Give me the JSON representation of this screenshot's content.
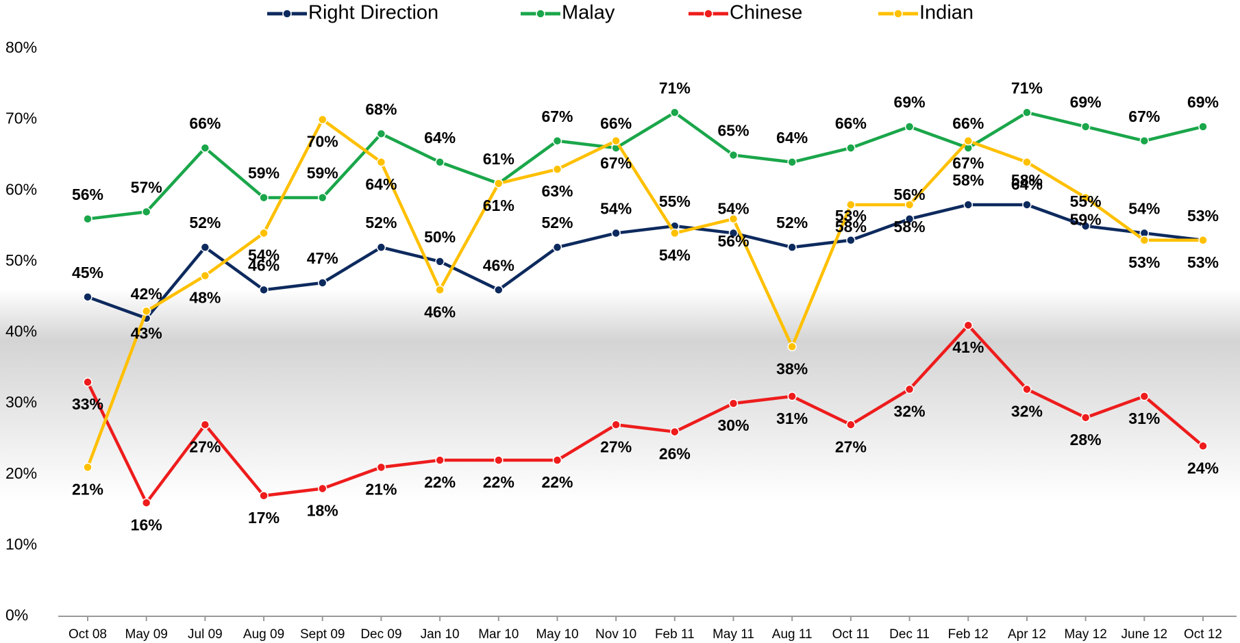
{
  "chart_data": {
    "type": "line",
    "categories": [
      "Oct 08",
      "May 09",
      "Jul 09",
      "Aug 09",
      "Sept 09",
      "Dec 09",
      "Jan 10",
      "Mar 10",
      "May 10",
      "Nov 10",
      "Feb 11",
      "May 11",
      "Aug 11",
      "Oct 11",
      "Dec 11",
      "Feb 12",
      "Apr 12",
      "May 12",
      "June 12",
      "Oct 12"
    ],
    "series": [
      {
        "name": "Right Direction",
        "color": "#0d2a5e",
        "values": [
          45,
          42,
          52,
          46,
          47,
          52,
          50,
          46,
          52,
          54,
          55,
          54,
          52,
          53,
          56,
          58,
          58,
          55,
          54,
          53
        ],
        "value_labels": [
          "45%",
          "42%",
          "52%",
          "46%",
          "47%",
          "52%",
          "50%",
          "46%",
          "52%",
          "54%",
          "55%",
          "54%",
          "52%",
          "53%",
          "56%",
          "58%",
          "58%",
          "55%",
          "54%",
          "53%"
        ]
      },
      {
        "name": "Malay",
        "color": "#1aa64a",
        "values": [
          56,
          57,
          66,
          59,
          59,
          68,
          64,
          61,
          67,
          66,
          71,
          65,
          64,
          66,
          69,
          66,
          71,
          69,
          67,
          69
        ],
        "value_labels": [
          "56%",
          "57%",
          "66%",
          "59%",
          "59%",
          "68%",
          "64%",
          "61%",
          "67%",
          "66%",
          "71%",
          "65%",
          "64%",
          "66%",
          "69%",
          "66%",
          "71%",
          "69%",
          "67%",
          "69%"
        ]
      },
      {
        "name": "Chinese",
        "color": "#ee1c1c",
        "values": [
          33,
          16,
          27,
          17,
          18,
          21,
          22,
          22,
          22,
          27,
          26,
          30,
          31,
          27,
          32,
          41,
          32,
          28,
          31,
          24
        ],
        "value_labels": [
          "33%",
          "16%",
          "27%",
          "17%",
          "18%",
          "21%",
          "22%",
          "22%",
          "22%",
          "27%",
          "26%",
          "30%",
          "31%",
          "27%",
          "32%",
          "41%",
          "32%",
          "28%",
          "31%",
          "24%"
        ]
      },
      {
        "name": "Indian",
        "color": "#ffc000",
        "values": [
          21,
          43,
          48,
          54,
          70,
          64,
          46,
          61,
          63,
          67,
          54,
          56,
          38,
          58,
          58,
          67,
          64,
          59,
          53,
          53
        ],
        "value_labels": [
          "21%",
          "43%",
          "48%",
          "54%",
          "70%",
          "64%",
          "46%",
          "61%",
          "63%",
          "67%",
          "54%",
          "56%",
          "38%",
          "58%",
          "58%",
          "67%",
          "64%",
          "59%",
          "53%",
          "53%"
        ]
      }
    ],
    "ylim": [
      0,
      80
    ],
    "yticks": [
      {
        "value": 0,
        "label": "0%"
      },
      {
        "value": 10,
        "label": "10%"
      },
      {
        "value": 20,
        "label": "20%"
      },
      {
        "value": 30,
        "label": "30%"
      },
      {
        "value": 40,
        "label": "40%"
      },
      {
        "value": 50,
        "label": "50%"
      },
      {
        "value": 60,
        "label": "60%"
      },
      {
        "value": 70,
        "label": "70%"
      },
      {
        "value": 80,
        "label": "80%"
      }
    ],
    "legend": "top"
  }
}
